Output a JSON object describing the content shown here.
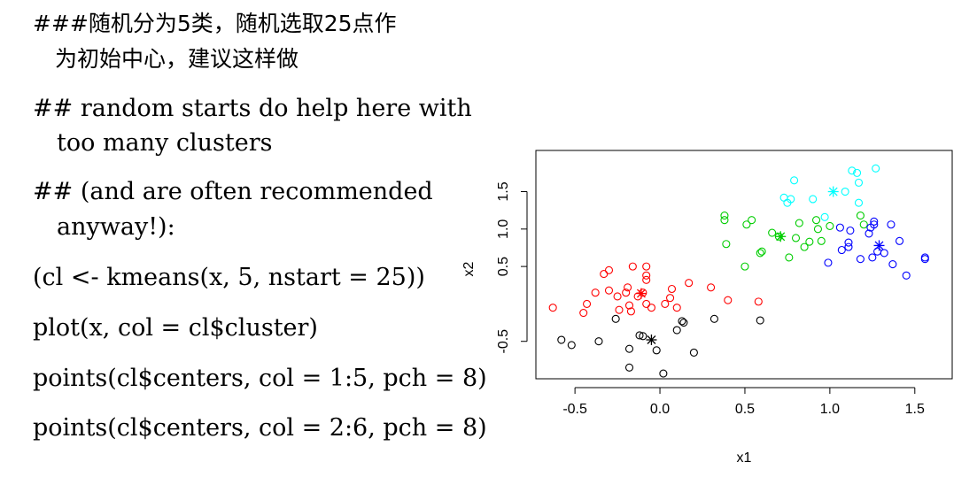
{
  "slide": {
    "lines": [
      "###随机分为5类，随机选取25点作",
      "为初始中心，建议这样做",
      "## random starts do help here with",
      "too many clusters",
      "## (and are often recommended",
      "anyway!):",
      "(cl <- kmeans(x, 5, nstart = 25))",
      "plot(x, col = cl$cluster)",
      "points(cl$centers, col = 1:5, pch = 8)",
      "points(cl$centers, col = 2:6, pch = 8)"
    ]
  },
  "chart_data": {
    "type": "scatter",
    "xlabel": "x1",
    "ylabel": "x2",
    "xlim": [
      -0.73,
      1.72
    ],
    "ylim": [
      -1.0,
      2.05
    ],
    "x_ticks": [
      -0.5,
      0.0,
      0.5,
      1.0,
      1.5
    ],
    "x_tick_labels": [
      "-0.5",
      "0.0",
      "0.5",
      "1.0",
      "1.5"
    ],
    "y_ticks": [
      -0.5,
      0.5,
      1.0,
      1.5
    ],
    "y_tick_labels": [
      "-0.5",
      "0.5",
      "1.0",
      "1.5"
    ],
    "grid": false,
    "legend": "none",
    "series": [
      {
        "color": "#000000",
        "points": [
          [
            -0.58,
            -0.48
          ],
          [
            -0.52,
            -0.55
          ],
          [
            -0.36,
            -0.5
          ],
          [
            -0.26,
            -0.2
          ],
          [
            -0.18,
            -0.6
          ],
          [
            -0.18,
            -0.85
          ],
          [
            -0.12,
            -0.42
          ],
          [
            -0.1,
            -0.43
          ],
          [
            -0.02,
            -0.62
          ],
          [
            0.02,
            -0.93
          ],
          [
            0.1,
            -0.35
          ],
          [
            0.13,
            -0.23
          ],
          [
            0.14,
            -0.25
          ],
          [
            0.2,
            -0.65
          ],
          [
            0.32,
            -0.2
          ],
          [
            0.59,
            -0.22
          ]
        ],
        "center": [
          -0.05,
          -0.48
        ]
      },
      {
        "color": "#ff0000",
        "points": [
          [
            -0.63,
            -0.05
          ],
          [
            -0.45,
            -0.12
          ],
          [
            -0.43,
            0.0
          ],
          [
            -0.38,
            0.15
          ],
          [
            -0.33,
            0.4
          ],
          [
            -0.3,
            0.45
          ],
          [
            -0.3,
            0.18
          ],
          [
            -0.25,
            0.1
          ],
          [
            -0.24,
            -0.08
          ],
          [
            -0.2,
            0.15
          ],
          [
            -0.19,
            0.22
          ],
          [
            -0.18,
            -0.02
          ],
          [
            -0.17,
            -0.1
          ],
          [
            -0.16,
            0.5
          ],
          [
            -0.13,
            0.1
          ],
          [
            -0.1,
            0.15
          ],
          [
            -0.08,
            0.0
          ],
          [
            -0.08,
            0.32
          ],
          [
            -0.08,
            0.38
          ],
          [
            -0.08,
            0.5
          ],
          [
            -0.05,
            -0.05
          ],
          [
            0.03,
            0.0
          ],
          [
            0.06,
            0.08
          ],
          [
            0.07,
            0.2
          ],
          [
            0.1,
            -0.05
          ],
          [
            0.17,
            0.28
          ],
          [
            0.3,
            0.22
          ],
          [
            0.4,
            0.05
          ],
          [
            0.58,
            0.03
          ]
        ],
        "center": [
          -0.11,
          0.14
        ]
      },
      {
        "color": "#00cd00",
        "points": [
          [
            0.38,
            1.18
          ],
          [
            0.38,
            1.12
          ],
          [
            0.39,
            0.8
          ],
          [
            0.5,
            0.5
          ],
          [
            0.51,
            1.06
          ],
          [
            0.54,
            1.12
          ],
          [
            0.59,
            0.68
          ],
          [
            0.6,
            0.7
          ],
          [
            0.66,
            0.95
          ],
          [
            0.7,
            0.9
          ],
          [
            0.76,
            0.62
          ],
          [
            0.8,
            0.88
          ],
          [
            0.82,
            1.08
          ],
          [
            0.85,
            0.76
          ],
          [
            0.88,
            0.83
          ],
          [
            0.92,
            1.12
          ],
          [
            0.93,
            1.0
          ],
          [
            0.95,
            0.84
          ],
          [
            1.0,
            1.04
          ],
          [
            1.18,
            1.18
          ],
          [
            1.2,
            1.06
          ]
        ],
        "center": [
          0.71,
          0.9
        ]
      },
      {
        "color": "#0000ff",
        "points": [
          [
            0.99,
            0.55
          ],
          [
            1.06,
            1.02
          ],
          [
            1.07,
            0.72
          ],
          [
            1.11,
            0.76
          ],
          [
            1.11,
            0.82
          ],
          [
            1.12,
            0.98
          ],
          [
            1.18,
            0.6
          ],
          [
            1.23,
            0.94
          ],
          [
            1.24,
            1.02
          ],
          [
            1.25,
            0.62
          ],
          [
            1.26,
            1.06
          ],
          [
            1.26,
            1.1
          ],
          [
            1.28,
            0.7
          ],
          [
            1.32,
            0.68
          ],
          [
            1.36,
            1.06
          ],
          [
            1.37,
            0.53
          ],
          [
            1.41,
            0.84
          ],
          [
            1.45,
            0.38
          ],
          [
            1.56,
            0.6
          ],
          [
            1.56,
            0.62
          ]
        ],
        "center": [
          1.29,
          0.78
        ]
      },
      {
        "color": "#00ffff",
        "points": [
          [
            0.73,
            1.42
          ],
          [
            0.75,
            1.35
          ],
          [
            0.77,
            1.4
          ],
          [
            0.79,
            1.65
          ],
          [
            0.9,
            1.4
          ],
          [
            0.97,
            1.16
          ],
          [
            1.09,
            1.5
          ],
          [
            1.13,
            1.78
          ],
          [
            1.16,
            1.75
          ],
          [
            1.17,
            1.62
          ],
          [
            1.17,
            1.35
          ],
          [
            1.27,
            1.81
          ]
        ],
        "center": [
          1.02,
          1.5
        ]
      }
    ]
  }
}
